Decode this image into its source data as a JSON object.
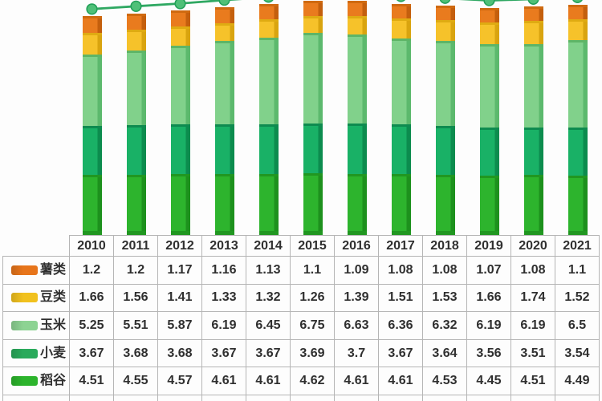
{
  "page": {
    "background": "#fdfdfd",
    "table_border_color": "#b5b5b5",
    "text_color": "#2f2f2f"
  },
  "chart_data": {
    "type": "bar",
    "subtype": "stacked-columns-with-trend-line",
    "title": "",
    "xlabel": "",
    "ylabel": "",
    "axes_hidden": true,
    "grid": false,
    "legend_position": "table-row-labels",
    "ylim": [
      0,
      17.6
    ],
    "categories": [
      "2010",
      "2011",
      "2012",
      "2013",
      "2014",
      "2015",
      "2016",
      "2017",
      "2018",
      "2019",
      "2020",
      "2021"
    ],
    "series": [
      {
        "key": "rice",
        "name": "稻谷",
        "color": "#2db42d",
        "edge": "#1d911d",
        "cap": "#219721",
        "values": [
          4.51,
          4.55,
          4.57,
          4.61,
          4.61,
          4.62,
          4.61,
          4.61,
          4.53,
          4.45,
          4.51,
          4.49
        ]
      },
      {
        "key": "wheat",
        "name": "小麦",
        "color": "#19b166",
        "edge": "#0c8c4e",
        "cap": "#0e8b50",
        "values": [
          3.67,
          3.68,
          3.68,
          3.67,
          3.67,
          3.69,
          3.7,
          3.67,
          3.64,
          3.56,
          3.51,
          3.54
        ]
      },
      {
        "key": "corn",
        "name": "玉米",
        "color": "#81d18b",
        "edge": "#5cb96d",
        "cap": "#5eb567",
        "values": [
          5.25,
          5.51,
          5.87,
          6.19,
          6.45,
          6.75,
          6.63,
          6.36,
          6.32,
          6.19,
          6.19,
          6.5
        ]
      },
      {
        "key": "beans",
        "name": "豆类",
        "color": "#f6c22a",
        "edge": "#d9a40f",
        "cap": "#dfab12",
        "values": [
          1.66,
          1.56,
          1.41,
          1.33,
          1.32,
          1.26,
          1.39,
          1.51,
          1.53,
          1.66,
          1.74,
          1.52
        ]
      },
      {
        "key": "tubers",
        "name": "薯类",
        "color": "#e97b1e",
        "edge": "#c45f0d",
        "cap": "#cf6a10",
        "values": [
          1.2,
          1.2,
          1.17,
          1.16,
          1.13,
          1.1,
          1.09,
          1.08,
          1.08,
          1.07,
          1.08,
          1.1
        ]
      }
    ],
    "line_series": {
      "name": "total",
      "stroke_color": "#2fa862",
      "marker_fill": "#4fc078",
      "marker_stroke": "#23a159",
      "values": [
        16.29,
        16.5,
        16.7,
        16.96,
        17.18,
        17.42,
        17.42,
        17.23,
        17.1,
        16.93,
        17.03,
        17.15
      ]
    }
  },
  "table": {
    "corner_label": "",
    "header": [
      "2010",
      "2011",
      "2012",
      "2013",
      "2014",
      "2015",
      "2016",
      "2017",
      "2018",
      "2019",
      "2020",
      "2021"
    ],
    "rows": [
      {
        "key": "tubers",
        "label": "薯类",
        "swatch": "#e7751b",
        "values": [
          "1.2",
          "1.2",
          "1.17",
          "1.16",
          "1.13",
          "1.1",
          "1.09",
          "1.08",
          "1.08",
          "1.07",
          "1.08",
          "1.1"
        ]
      },
      {
        "key": "beans",
        "label": "豆类",
        "swatch": "#f1c11e",
        "values": [
          "1.66",
          "1.56",
          "1.41",
          "1.33",
          "1.32",
          "1.26",
          "1.39",
          "1.51",
          "1.53",
          "1.66",
          "1.74",
          "1.52"
        ]
      },
      {
        "key": "corn",
        "label": "玉米",
        "swatch": "#8dd393",
        "values": [
          "5.25",
          "5.51",
          "5.87",
          "6.19",
          "6.45",
          "6.75",
          "6.63",
          "6.36",
          "6.32",
          "6.19",
          "6.19",
          "6.5"
        ]
      },
      {
        "key": "wheat",
        "label": "小麦",
        "swatch": "#29aa5b",
        "values": [
          "3.67",
          "3.68",
          "3.68",
          "3.67",
          "3.67",
          "3.69",
          "3.7",
          "3.67",
          "3.64",
          "3.56",
          "3.51",
          "3.54"
        ]
      },
      {
        "key": "rice",
        "label": "稻谷",
        "swatch": "#2cb42c",
        "values": [
          "4.51",
          "4.55",
          "4.57",
          "4.61",
          "4.61",
          "4.62",
          "4.61",
          "4.61",
          "4.53",
          "4.45",
          "4.51",
          "4.49"
        ]
      }
    ]
  }
}
